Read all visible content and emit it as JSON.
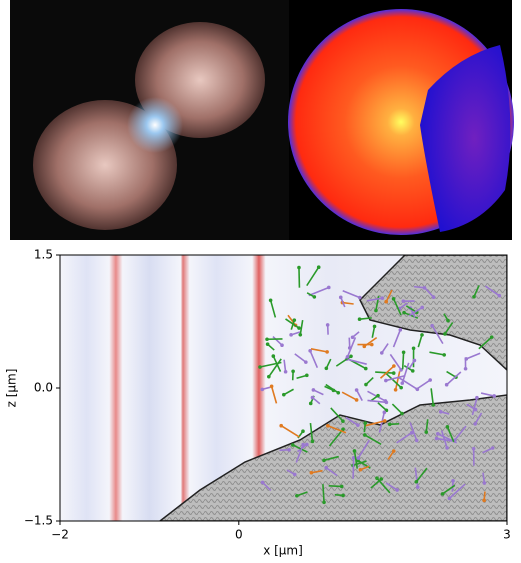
{
  "chart_data": {
    "type": "field-map",
    "xlabel": "x [μm]",
    "ylabel": "z [μm]",
    "xlim": [
      -2,
      3
    ],
    "ylim": [
      -1.5,
      1.5
    ],
    "xticks": [
      {
        "value": -2,
        "label": "−2"
      },
      0,
      3
    ],
    "yticks": [
      {
        "value": -1.5,
        "label": "−1.5"
      },
      {
        "value": 0,
        "label": "0.0"
      },
      1.5
    ]
  }
}
